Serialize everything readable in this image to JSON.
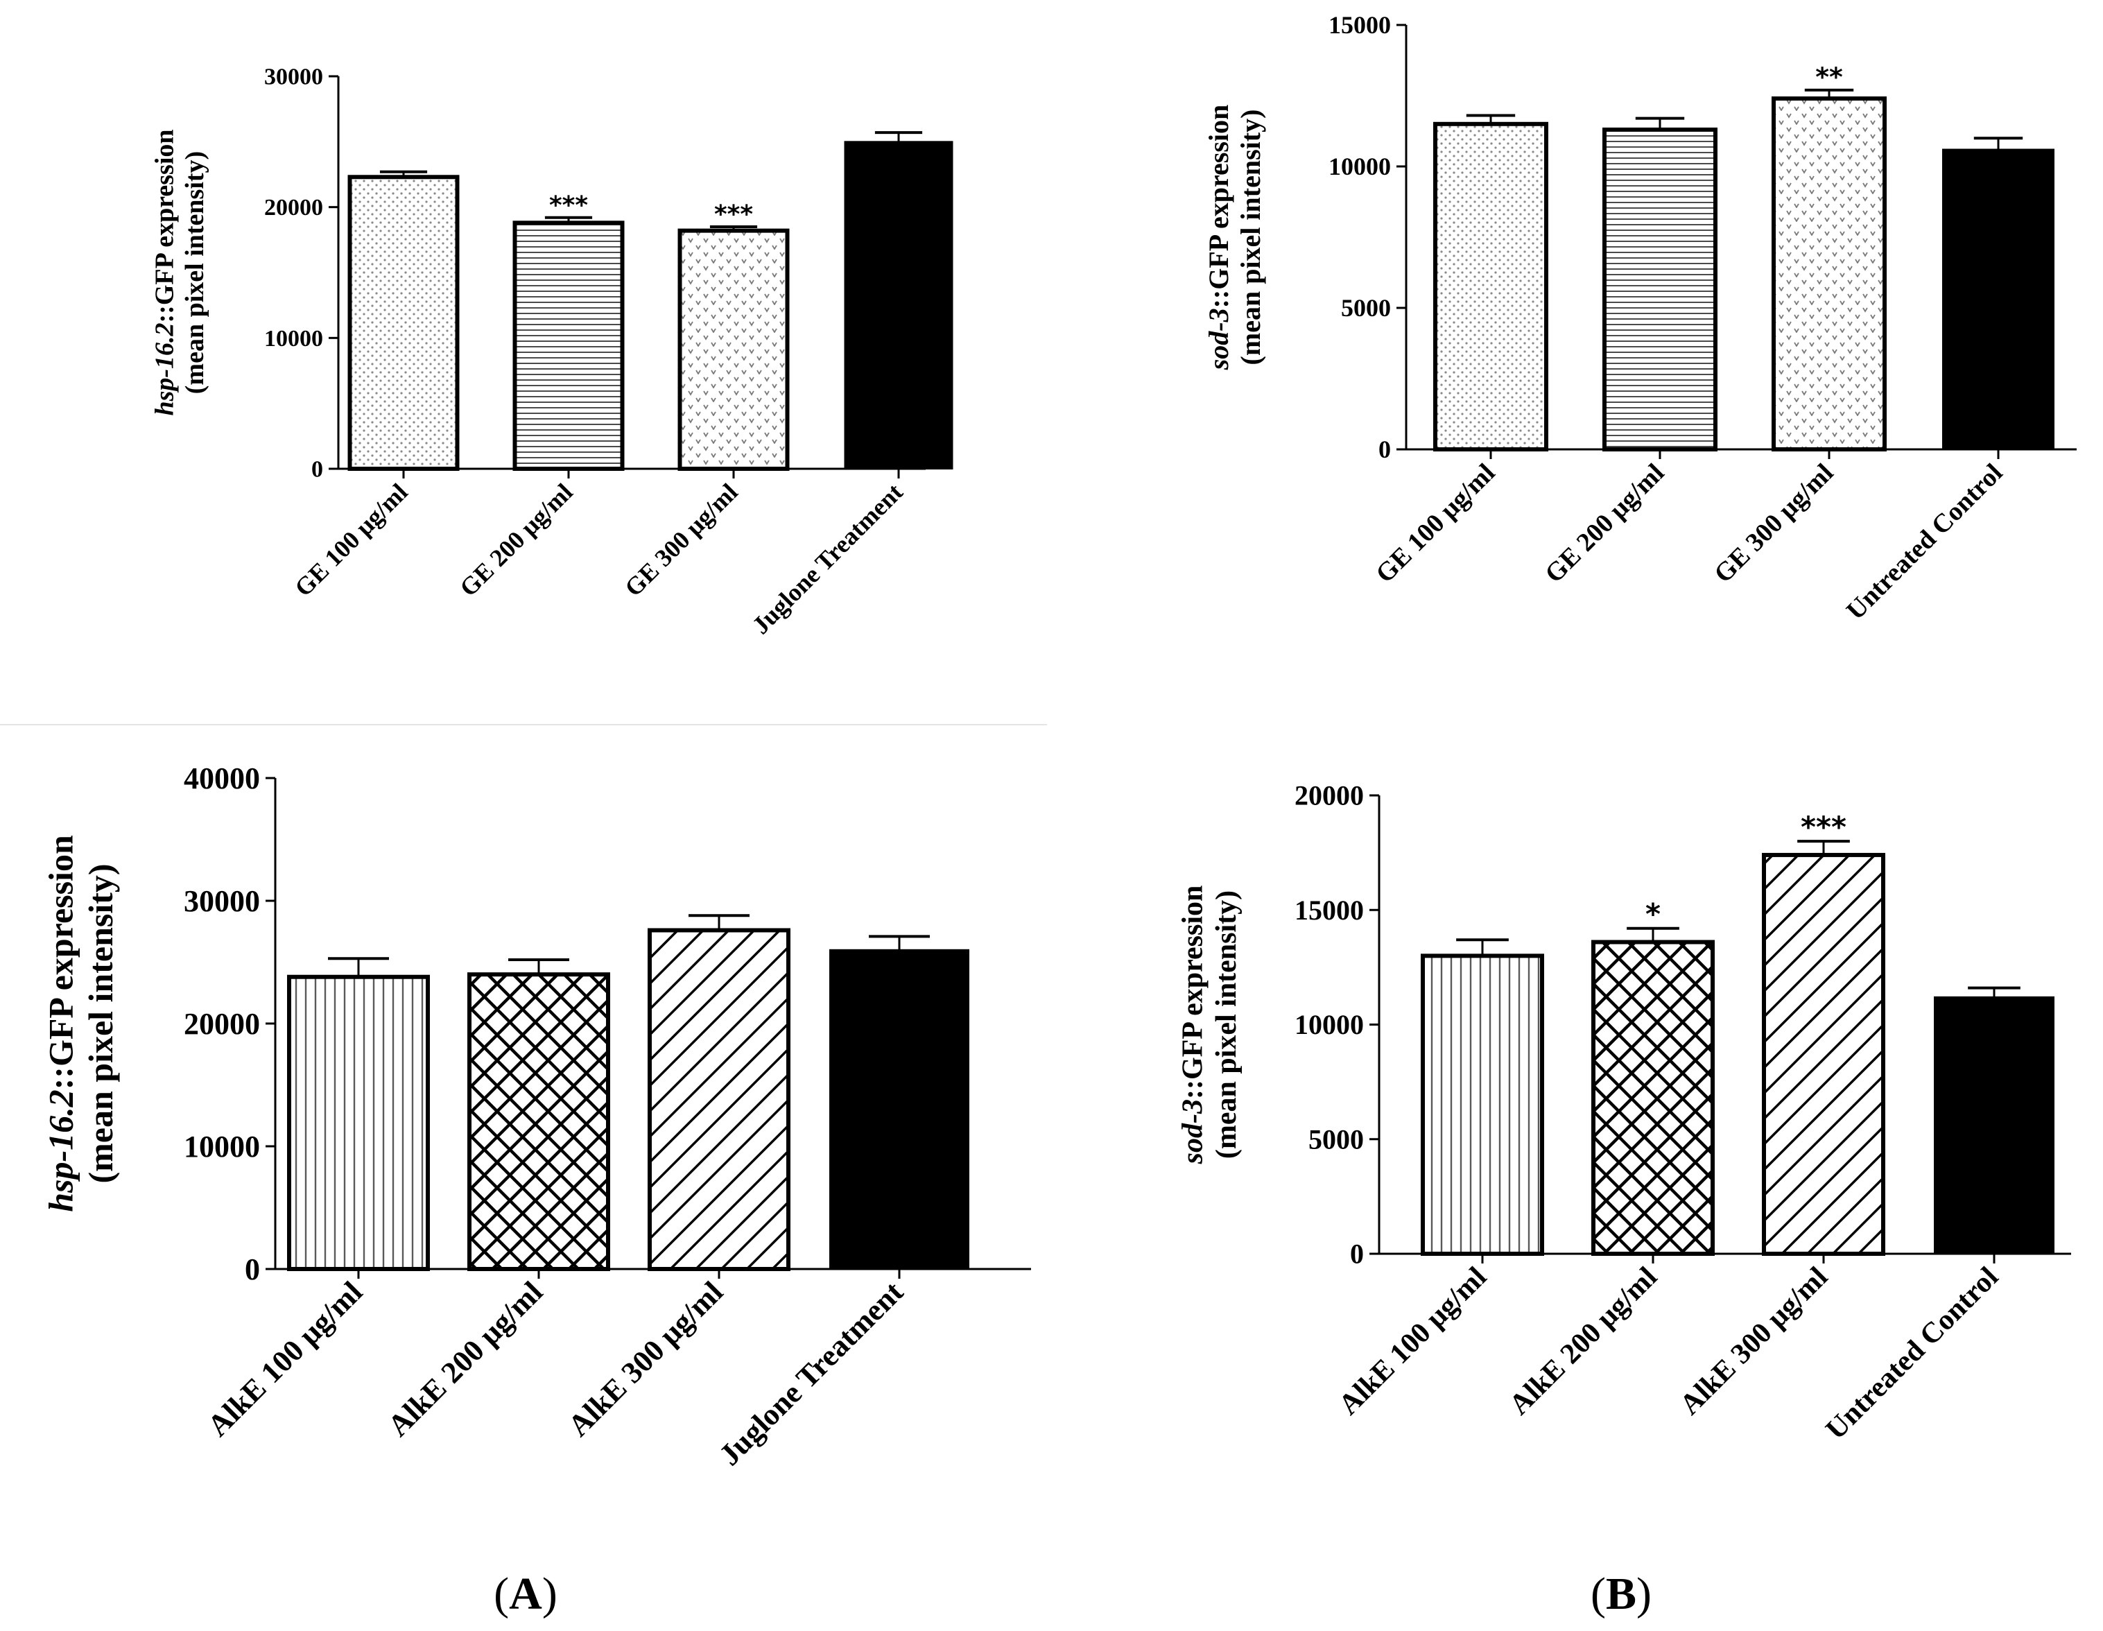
{
  "colors": {
    "ink": "#000000",
    "background": "#ffffff",
    "hatch": "#000000",
    "light_hatch": "#6e6e6e"
  },
  "panel_labels": {
    "a": "A",
    "b": "B"
  },
  "chart_data": [
    {
      "id": "chart-a-top",
      "type": "bar",
      "title": "",
      "ylabel_gene": "hsp-16.2",
      "ylabel_rest": "::GFP expression",
      "ylabel_line2": "(mean pixel intensity)",
      "xlabel": "",
      "ylim": [
        0,
        30000
      ],
      "yticks": [
        0,
        10000,
        20000,
        30000
      ],
      "categories": [
        "GE 100 μg/ml",
        "GE 200 μg/ml",
        "GE 300 μg/ml",
        "Juglone Treatment"
      ],
      "values": [
        22300,
        18800,
        18200,
        25000
      ],
      "errors": [
        400,
        400,
        300,
        700
      ],
      "significance": [
        "",
        "***",
        "***",
        ""
      ],
      "patterns": [
        "dots-fine",
        "horizontal",
        "dots-v",
        "solid"
      ]
    },
    {
      "id": "chart-b-top",
      "type": "bar",
      "title": "",
      "ylabel_gene": "sod-3",
      "ylabel_rest": "::GFP expression",
      "ylabel_line2": "(mean pixel intensity)",
      "xlabel": "",
      "ylim": [
        0,
        15000
      ],
      "yticks": [
        0,
        5000,
        10000,
        15000
      ],
      "categories": [
        "GE 100 μg/ml",
        "GE 200 μg/ml",
        "GE 300 μg/ml",
        "Untreated Control"
      ],
      "values": [
        11500,
        11300,
        12400,
        10600
      ],
      "errors": [
        300,
        400,
        300,
        400
      ],
      "significance": [
        "",
        "",
        "**",
        ""
      ],
      "patterns": [
        "dots-fine",
        "horizontal",
        "dots-v",
        "solid"
      ]
    },
    {
      "id": "chart-a-bottom",
      "type": "bar",
      "title": "",
      "ylabel_gene": "hsp-16.2",
      "ylabel_rest": "::GFP expression",
      "ylabel_line2": "(mean pixel intensity)",
      "xlabel": "",
      "ylim": [
        0,
        40000
      ],
      "yticks": [
        0,
        10000,
        20000,
        30000,
        40000
      ],
      "categories": [
        "AlkE 100 μg/ml",
        "AlkE 200 μg/ml",
        "AlkE 300 μg/ml",
        "Juglone Treatment"
      ],
      "values": [
        23800,
        24000,
        27600,
        26000
      ],
      "errors": [
        1500,
        1200,
        1200,
        1100
      ],
      "significance": [
        "",
        "",
        "",
        ""
      ],
      "patterns": [
        "vertical",
        "crosshatch",
        "diagonal",
        "solid"
      ]
    },
    {
      "id": "chart-b-bottom",
      "type": "bar",
      "title": "",
      "ylabel_gene": "sod-3",
      "ylabel_rest": "::GFP expression",
      "ylabel_line2": "(mean pixel intensity)",
      "xlabel": "",
      "ylim": [
        0,
        20000
      ],
      "yticks": [
        0,
        5000,
        10000,
        15000,
        20000
      ],
      "categories": [
        "AlkE 100 μg/ml",
        "AlkE 200 μg/ml",
        "AlkE 300 μg/ml",
        "Untreated Control"
      ],
      "values": [
        13000,
        13600,
        17400,
        11200
      ],
      "errors": [
        700,
        600,
        600,
        400
      ],
      "significance": [
        "",
        "*",
        "***",
        ""
      ],
      "patterns": [
        "vertical",
        "crosshatch",
        "diagonal",
        "solid"
      ]
    }
  ]
}
